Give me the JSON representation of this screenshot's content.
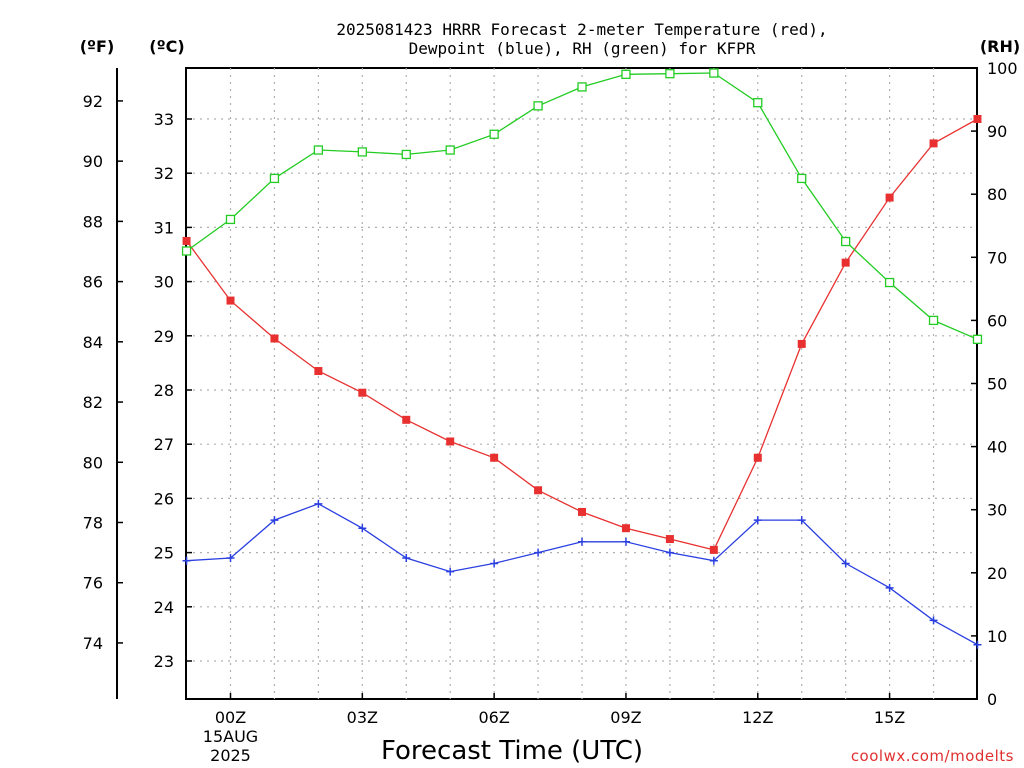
{
  "chart_data": {
    "type": "line",
    "title": "2025081423 HRRR Forecast 2-meter Temperature (red),",
    "subtitle": "Dewpoint (blue), RH (green) for KFPR",
    "xlabel": "Forecast Time (UTC)",
    "source": "coolwx.com/modelts",
    "unit_labels": {
      "fahrenheit": "(ºF)",
      "celsius": "(ºC)",
      "rh": "(RH)"
    },
    "x": [
      "23Z",
      "00Z",
      "01Z",
      "02Z",
      "03Z",
      "04Z",
      "05Z",
      "06Z",
      "07Z",
      "08Z",
      "09Z",
      "10Z",
      "11Z",
      "12Z",
      "13Z",
      "14Z",
      "15Z",
      "16Z",
      "17Z"
    ],
    "x_ticks": [
      {
        "label": "00Z",
        "date": "15AUG",
        "year": "2025"
      },
      {
        "label": "03Z"
      },
      {
        "label": "06Z"
      },
      {
        "label": "09Z"
      },
      {
        "label": "12Z"
      },
      {
        "label": "15Z"
      }
    ],
    "y_celsius_ticks": [
      "23",
      "24",
      "25",
      "26",
      "27",
      "28",
      "29",
      "30",
      "31",
      "32",
      "33"
    ],
    "y_fahrenheit_ticks": [
      "74",
      "76",
      "78",
      "80",
      "82",
      "84",
      "86",
      "88",
      "90",
      "92"
    ],
    "y_rh_ticks": [
      "0",
      "10",
      "20",
      "30",
      "40",
      "50",
      "60",
      "70",
      "80",
      "90",
      "100"
    ],
    "ylim_celsius": [
      22.2,
      33.9
    ],
    "ylim_rh": [
      0,
      100
    ],
    "grid": true,
    "series": [
      {
        "name": "Temperature (red)",
        "axis": "celsius",
        "color": "#e83030",
        "marker": "filled-square",
        "values": [
          30.75,
          29.65,
          28.95,
          28.35,
          27.95,
          27.45,
          27.05,
          26.75,
          26.15,
          25.75,
          25.45,
          25.25,
          25.05,
          26.75,
          28.85,
          30.35,
          31.55,
          32.55,
          33.0
        ]
      },
      {
        "name": "Dewpoint (blue)",
        "axis": "celsius",
        "color": "#2a3fe0",
        "marker": "plus",
        "values": [
          24.85,
          24.9,
          25.6,
          25.9,
          25.45,
          24.9,
          24.65,
          24.8,
          25.0,
          25.2,
          25.2,
          25.0,
          24.85,
          25.6,
          25.6,
          24.8,
          24.35,
          23.75,
          23.3
        ]
      },
      {
        "name": "RH (green)",
        "axis": "rh",
        "color": "#22cc22",
        "marker": "open-square",
        "values": [
          71,
          76,
          82.5,
          87,
          86.7,
          86.3,
          87,
          89.5,
          94,
          97,
          99,
          99.1,
          99.2,
          94.5,
          82.5,
          72.5,
          66,
          60,
          57
        ]
      }
    ]
  }
}
